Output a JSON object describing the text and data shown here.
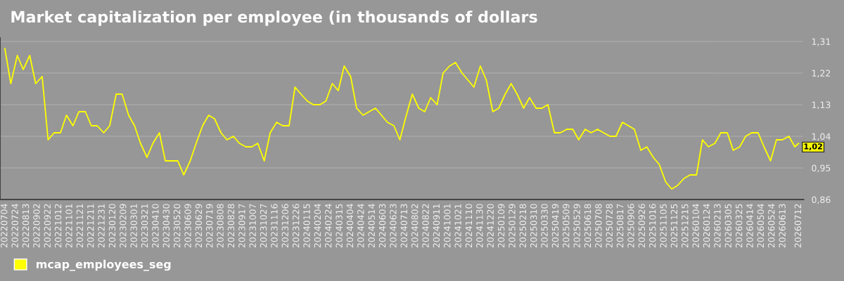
{
  "chart_data": {
    "type": "line",
    "title": "Market capitalization per employee (in thousands of dollars",
    "x": [
      "2022-07-04",
      "2022-07-15",
      "2022-07-27",
      "2022-08-07",
      "2022-08-19",
      "2022-08-30",
      "2022-09-11",
      "2022-09-22",
      "2022-10-03",
      "2022-10-15",
      "2022-10-26",
      "2022-11-07",
      "2022-11-18",
      "2022-11-30",
      "2022-12-11",
      "2022-12-22",
      "2023-01-03",
      "2023-01-14",
      "2023-01-26",
      "2023-02-06",
      "2023-02-18",
      "2023-03-01",
      "2023-03-12",
      "2023-03-24",
      "2023-04-04",
      "2023-04-16",
      "2023-04-27",
      "2023-05-09",
      "2023-05-20",
      "2023-05-31",
      "2023-06-12",
      "2023-06-23",
      "2023-07-05",
      "2023-07-16",
      "2023-07-27",
      "2023-08-08",
      "2023-08-19",
      "2023-08-31",
      "2023-09-11",
      "2023-09-23",
      "2023-10-04",
      "2023-10-15",
      "2023-10-27",
      "2023-11-07",
      "2023-11-19",
      "2023-11-30",
      "2023-12-12",
      "2023-12-23",
      "2024-01-03",
      "2024-01-15",
      "2024-01-26",
      "2024-02-07",
      "2024-02-18",
      "2024-03-01",
      "2024-03-12",
      "2024-03-23",
      "2024-04-04",
      "2024-04-15",
      "2024-04-27",
      "2024-05-08",
      "2024-05-20",
      "2024-05-31",
      "2024-06-11",
      "2024-06-23",
      "2024-07-04",
      "2024-07-16",
      "2024-07-27",
      "2024-08-08",
      "2024-08-19",
      "2024-08-30",
      "2024-09-11",
      "2024-09-22",
      "2024-10-04",
      "2024-10-15",
      "2024-10-27",
      "2024-11-07",
      "2024-11-18",
      "2024-11-30",
      "2024-12-11",
      "2024-12-23",
      "2025-01-03",
      "2025-01-15",
      "2025-01-26",
      "2025-02-06",
      "2025-02-18",
      "2025-03-01",
      "2025-03-13",
      "2025-03-24",
      "2025-04-04",
      "2025-04-16",
      "2025-04-27",
      "2025-05-09",
      "2025-05-20",
      "2025-05-31",
      "2025-06-12",
      "2025-06-23",
      "2025-07-05",
      "2025-07-16",
      "2025-07-28",
      "2025-08-08",
      "2025-08-20",
      "2025-08-31",
      "2025-09-11",
      "2025-09-23",
      "2025-10-04",
      "2025-10-16",
      "2025-10-27",
      "2025-11-08",
      "2025-11-19",
      "2025-11-30",
      "2025-12-12",
      "2025-12-23",
      "2026-01-04",
      "2026-01-15",
      "2026-01-26",
      "2026-02-07",
      "2026-02-18",
      "2026-03-02",
      "2026-03-13",
      "2026-03-25",
      "2026-04-05",
      "2026-04-16",
      "2026-04-28",
      "2026-05-09",
      "2026-05-21",
      "2026-06-01",
      "2026-06-12",
      "2026-06-24",
      "2026-07-05",
      "2026-07-12"
    ],
    "series": [
      {
        "name": "mcap_employees_seg",
        "color": "#ffff00",
        "values": [
          1.29,
          1.19,
          1.27,
          1.23,
          1.27,
          1.19,
          1.21,
          1.03,
          1.05,
          1.05,
          1.1,
          1.07,
          1.11,
          1.11,
          1.07,
          1.07,
          1.05,
          1.07,
          1.16,
          1.16,
          1.1,
          1.07,
          1.02,
          0.98,
          1.02,
          1.05,
          0.97,
          0.97,
          0.97,
          0.93,
          0.97,
          1.02,
          1.07,
          1.1,
          1.09,
          1.05,
          1.03,
          1.04,
          1.02,
          1.01,
          1.01,
          1.02,
          0.97,
          1.05,
          1.08,
          1.07,
          1.07,
          1.18,
          1.16,
          1.14,
          1.13,
          1.13,
          1.14,
          1.19,
          1.17,
          1.24,
          1.21,
          1.12,
          1.1,
          1.11,
          1.12,
          1.1,
          1.08,
          1.07,
          1.03,
          1.1,
          1.16,
          1.12,
          1.11,
          1.15,
          1.13,
          1.22,
          1.24,
          1.25,
          1.22,
          1.2,
          1.18,
          1.24,
          1.2,
          1.11,
          1.12,
          1.16,
          1.19,
          1.16,
          1.12,
          1.15,
          1.12,
          1.12,
          1.13,
          1.05,
          1.05,
          1.06,
          1.06,
          1.03,
          1.06,
          1.05,
          1.06,
          1.05,
          1.04,
          1.04,
          1.08,
          1.07,
          1.06,
          1.0,
          1.01,
          0.98,
          0.96,
          0.91,
          0.89,
          0.9,
          0.92,
          0.93,
          0.93,
          1.03,
          1.01,
          1.02,
          1.05,
          1.05,
          1.0,
          1.01,
          1.04,
          1.05,
          1.05,
          1.01,
          0.97,
          1.03,
          1.03,
          1.04,
          1.01,
          1.02
        ]
      }
    ],
    "xlim": [
      "2022-06-25",
      "2026-07-21"
    ],
    "ylim": [
      0.86,
      1.32
    ],
    "yticks": [
      {
        "value": 0.86,
        "label": "0,86"
      },
      {
        "value": 0.95,
        "label": "0,95"
      },
      {
        "value": 1.04,
        "label": "1,04"
      },
      {
        "value": 1.13,
        "label": "1,13"
      },
      {
        "value": 1.22,
        "label": "1,22"
      },
      {
        "value": 1.31,
        "label": "1,31"
      }
    ],
    "xticks": [
      {
        "value": "2022-07-04",
        "label": "20220704"
      },
      {
        "value": "2022-07-24",
        "label": "20220724"
      },
      {
        "value": "2022-08-13",
        "label": "20220813"
      },
      {
        "value": "2022-09-02",
        "label": "20220902"
      },
      {
        "value": "2022-09-22",
        "label": "20220922"
      },
      {
        "value": "2022-10-12",
        "label": "20221012"
      },
      {
        "value": "2022-11-01",
        "label": "20221101"
      },
      {
        "value": "2022-11-21",
        "label": "20221121"
      },
      {
        "value": "2022-12-11",
        "label": "20221211"
      },
      {
        "value": "2022-12-31",
        "label": "20221231"
      },
      {
        "value": "2023-01-20",
        "label": "20230120"
      },
      {
        "value": "2023-02-09",
        "label": "20230209"
      },
      {
        "value": "2023-03-01",
        "label": "20230301"
      },
      {
        "value": "2023-03-21",
        "label": "20230321"
      },
      {
        "value": "2023-04-10",
        "label": "20230410"
      },
      {
        "value": "2023-04-30",
        "label": "20230430"
      },
      {
        "value": "2023-05-20",
        "label": "20230520"
      },
      {
        "value": "2023-06-09",
        "label": "20230609"
      },
      {
        "value": "2023-06-29",
        "label": "20230629"
      },
      {
        "value": "2023-07-19",
        "label": "20230719"
      },
      {
        "value": "2023-08-08",
        "label": "20230808"
      },
      {
        "value": "2023-08-28",
        "label": "20230828"
      },
      {
        "value": "2023-09-17",
        "label": "20230917"
      },
      {
        "value": "2023-10-07",
        "label": "20231007"
      },
      {
        "value": "2023-10-27",
        "label": "20231027"
      },
      {
        "value": "2023-11-16",
        "label": "20231116"
      },
      {
        "value": "2023-12-06",
        "label": "20231206"
      },
      {
        "value": "2023-12-26",
        "label": "20231226"
      },
      {
        "value": "2024-01-15",
        "label": "20240115"
      },
      {
        "value": "2024-02-04",
        "label": "20240204"
      },
      {
        "value": "2024-02-24",
        "label": "20240224"
      },
      {
        "value": "2024-03-15",
        "label": "20240315"
      },
      {
        "value": "2024-04-04",
        "label": "20240404"
      },
      {
        "value": "2024-04-24",
        "label": "20240424"
      },
      {
        "value": "2024-05-14",
        "label": "20240514"
      },
      {
        "value": "2024-06-03",
        "label": "20240603"
      },
      {
        "value": "2024-06-23",
        "label": "20240623"
      },
      {
        "value": "2024-07-13",
        "label": "20240713"
      },
      {
        "value": "2024-08-02",
        "label": "20240802"
      },
      {
        "value": "2024-08-22",
        "label": "20240822"
      },
      {
        "value": "2024-09-11",
        "label": "20240911"
      },
      {
        "value": "2024-10-01",
        "label": "20241001"
      },
      {
        "value": "2024-10-21",
        "label": "20241021"
      },
      {
        "value": "2024-11-10",
        "label": "20241110"
      },
      {
        "value": "2024-11-30",
        "label": "20241130"
      },
      {
        "value": "2024-12-20",
        "label": "20241220"
      },
      {
        "value": "2025-01-09",
        "label": "20250109"
      },
      {
        "value": "2025-01-29",
        "label": "20250129"
      },
      {
        "value": "2025-02-18",
        "label": "20250218"
      },
      {
        "value": "2025-03-10",
        "label": "20250310"
      },
      {
        "value": "2025-03-30",
        "label": "20250330"
      },
      {
        "value": "2025-04-19",
        "label": "20250419"
      },
      {
        "value": "2025-05-09",
        "label": "20250509"
      },
      {
        "value": "2025-05-29",
        "label": "20250529"
      },
      {
        "value": "2025-06-18",
        "label": "20250618"
      },
      {
        "value": "2025-07-08",
        "label": "20250708"
      },
      {
        "value": "2025-07-28",
        "label": "20250728"
      },
      {
        "value": "2025-08-17",
        "label": "20250817"
      },
      {
        "value": "2025-09-06",
        "label": "20250906"
      },
      {
        "value": "2025-09-26",
        "label": "20250926"
      },
      {
        "value": "2025-10-16",
        "label": "20251016"
      },
      {
        "value": "2025-11-05",
        "label": "20251105"
      },
      {
        "value": "2025-11-25",
        "label": "20251125"
      },
      {
        "value": "2025-12-15",
        "label": "20251215"
      },
      {
        "value": "2026-01-04",
        "label": "20260104"
      },
      {
        "value": "2026-01-24",
        "label": "20260124"
      },
      {
        "value": "2026-02-13",
        "label": "20260213"
      },
      {
        "value": "2026-03-05",
        "label": "20260305"
      },
      {
        "value": "2026-03-25",
        "label": "20260325"
      },
      {
        "value": "2026-04-14",
        "label": "20260414"
      },
      {
        "value": "2026-05-04",
        "label": "20260504"
      },
      {
        "value": "2026-05-24",
        "label": "20260524"
      },
      {
        "value": "2026-06-13",
        "label": "20260613"
      },
      {
        "value": "2026-07-12",
        "label": "20260712"
      }
    ],
    "annotations": [
      {
        "text": "1,02",
        "x": "2026-07-12",
        "y": 1.02
      }
    ],
    "grid": "y",
    "legend": "bottom left",
    "marker": "none",
    "line_style": "solid"
  }
}
